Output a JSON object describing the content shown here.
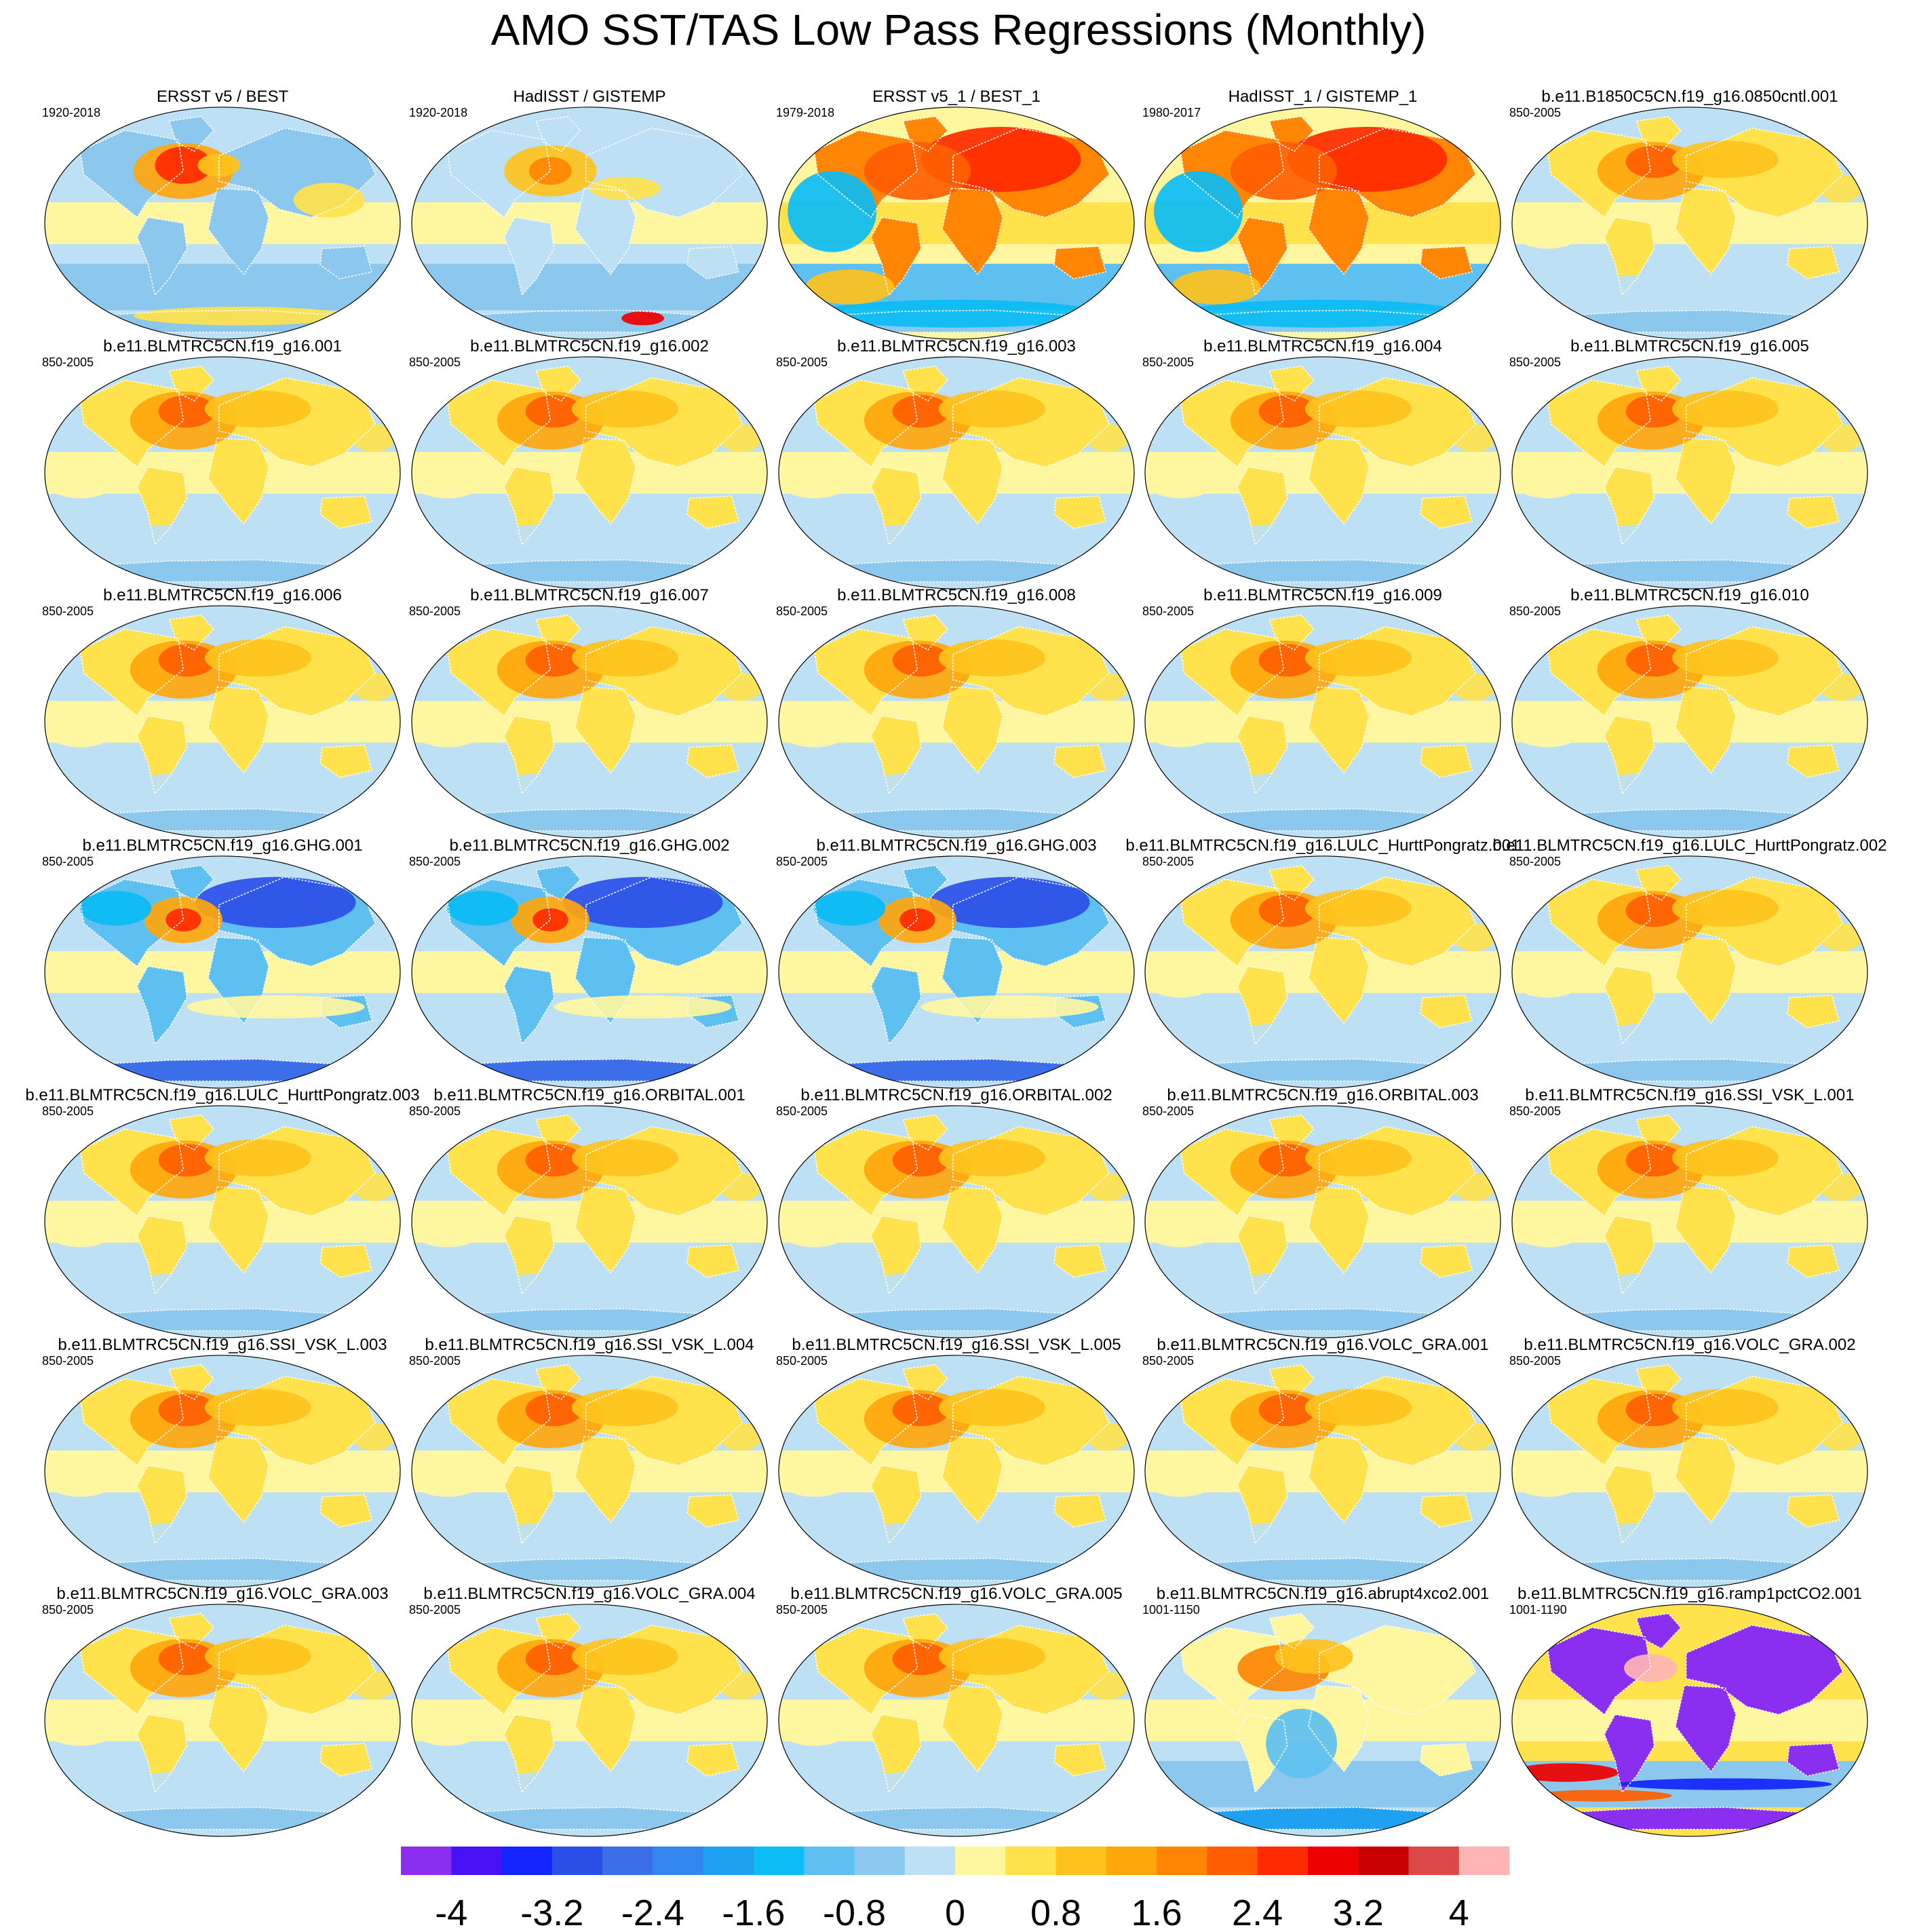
{
  "chart_data": {
    "type": "heatmap",
    "title": "AMO SST/TAS Low Pass Regressions (Monthly)",
    "panels": [
      {
        "title": "ERSST v5 / BEST",
        "period": "1920-2018",
        "style": "obs"
      },
      {
        "title": "HadISST / GISTEMP",
        "period": "1920-2018",
        "style": "obs2"
      },
      {
        "title": "ERSST v5_1 / BEST_1",
        "period": "1979-2018",
        "style": "recent"
      },
      {
        "title": "HadISST_1 / GISTEMP_1",
        "period": "1980-2017",
        "style": "recent"
      },
      {
        "title": "b.e11.B1850C5CN.f19_g16.0850cntl.001",
        "period": "850-2005",
        "style": "model"
      },
      {
        "title": "b.e11.BLMTRC5CN.f19_g16.001",
        "period": "850-2005",
        "style": "model"
      },
      {
        "title": "b.e11.BLMTRC5CN.f19_g16.002",
        "period": "850-2005",
        "style": "model"
      },
      {
        "title": "b.e11.BLMTRC5CN.f19_g16.003",
        "period": "850-2005",
        "style": "model"
      },
      {
        "title": "b.e11.BLMTRC5CN.f19_g16.004",
        "period": "850-2005",
        "style": "model"
      },
      {
        "title": "b.e11.BLMTRC5CN.f19_g16.005",
        "period": "850-2005",
        "style": "model"
      },
      {
        "title": "b.e11.BLMTRC5CN.f19_g16.006",
        "period": "850-2005",
        "style": "model"
      },
      {
        "title": "b.e11.BLMTRC5CN.f19_g16.007",
        "period": "850-2005",
        "style": "model"
      },
      {
        "title": "b.e11.BLMTRC5CN.f19_g16.008",
        "period": "850-2005",
        "style": "model"
      },
      {
        "title": "b.e11.BLMTRC5CN.f19_g16.009",
        "period": "850-2005",
        "style": "model"
      },
      {
        "title": "b.e11.BLMTRC5CN.f19_g16.010",
        "period": "850-2005",
        "style": "model"
      },
      {
        "title": "b.e11.BLMTRC5CN.f19_g16.GHG.001",
        "period": "850-2005",
        "style": "ghg"
      },
      {
        "title": "b.e11.BLMTRC5CN.f19_g16.GHG.002",
        "period": "850-2005",
        "style": "ghg"
      },
      {
        "title": "b.e11.BLMTRC5CN.f19_g16.GHG.003",
        "period": "850-2005",
        "style": "ghg"
      },
      {
        "title": "b.e11.BLMTRC5CN.f19_g16.LULC_HurttPongratz.001",
        "period": "850-2005",
        "style": "model"
      },
      {
        "title": "b.e11.BLMTRC5CN.f19_g16.LULC_HurttPongratz.002",
        "period": "850-2005",
        "style": "model"
      },
      {
        "title": "b.e11.BLMTRC5CN.f19_g16.LULC_HurttPongratz.003",
        "period": "850-2005",
        "style": "model"
      },
      {
        "title": "b.e11.BLMTRC5CN.f19_g16.ORBITAL.001",
        "period": "850-2005",
        "style": "model"
      },
      {
        "title": "b.e11.BLMTRC5CN.f19_g16.ORBITAL.002",
        "period": "850-2005",
        "style": "model"
      },
      {
        "title": "b.e11.BLMTRC5CN.f19_g16.ORBITAL.003",
        "period": "850-2005",
        "style": "model"
      },
      {
        "title": "b.e11.BLMTRC5CN.f19_g16.SSI_VSK_L.001",
        "period": "850-2005",
        "style": "model"
      },
      {
        "title": "b.e11.BLMTRC5CN.f19_g16.SSI_VSK_L.003",
        "period": "850-2005",
        "style": "model"
      },
      {
        "title": "b.e11.BLMTRC5CN.f19_g16.SSI_VSK_L.004",
        "period": "850-2005",
        "style": "model"
      },
      {
        "title": "b.e11.BLMTRC5CN.f19_g16.SSI_VSK_L.005",
        "period": "850-2005",
        "style": "model"
      },
      {
        "title": "b.e11.BLMTRC5CN.f19_g16.VOLC_GRA.001",
        "period": "850-2005",
        "style": "model"
      },
      {
        "title": "b.e11.BLMTRC5CN.f19_g16.VOLC_GRA.002",
        "period": "850-2005",
        "style": "model"
      },
      {
        "title": "b.e11.BLMTRC5CN.f19_g16.VOLC_GRA.003",
        "period": "850-2005",
        "style": "model"
      },
      {
        "title": "b.e11.BLMTRC5CN.f19_g16.VOLC_GRA.004",
        "period": "850-2005",
        "style": "model"
      },
      {
        "title": "b.e11.BLMTRC5CN.f19_g16.VOLC_GRA.005",
        "period": "850-2005",
        "style": "model"
      },
      {
        "title": "b.e11.BLMTRC5CN.f19_g16.abrupt4xco2.001",
        "period": "1001-1150",
        "style": "abrupt"
      },
      {
        "title": "b.e11.BLMTRC5CN.f19_g16.ramp1pctCO2.001",
        "period": "1001-1190",
        "style": "ramp"
      }
    ],
    "colorbar": {
      "colors": [
        "#8a2ff0",
        "#4712f5",
        "#1424ff",
        "#2b4fe8",
        "#3b6ee8",
        "#3386ee",
        "#1fa0f0",
        "#0bbcf5",
        "#5ec0f0",
        "#8cc8ee",
        "#bde0f4",
        "#fff6a0",
        "#ffe24c",
        "#ffc21c",
        "#ffa60c",
        "#ff8604",
        "#ff5e00",
        "#ff2a00",
        "#ee0000",
        "#c80000",
        "#dc4848",
        "#ffb4b4"
      ],
      "boundaries": [
        -4,
        -3.6,
        -3.2,
        -2.8,
        -2.4,
        -2,
        -1.6,
        -1.2,
        -0.8,
        -0.4,
        0,
        0.4,
        0.8,
        1.2,
        1.6,
        2,
        2.4,
        2.8,
        3.2,
        3.6,
        4
      ],
      "tick_labels": [
        "-4",
        "-3.2",
        "-2.4",
        "-1.6",
        "-0.8",
        "0",
        "0.8",
        "1.6",
        "2.4",
        "3.2",
        "4"
      ],
      "tick_values": [
        -4,
        -3.2,
        -2.4,
        -1.6,
        -0.8,
        0,
        0.8,
        1.6,
        2.4,
        3.2,
        4
      ]
    }
  }
}
